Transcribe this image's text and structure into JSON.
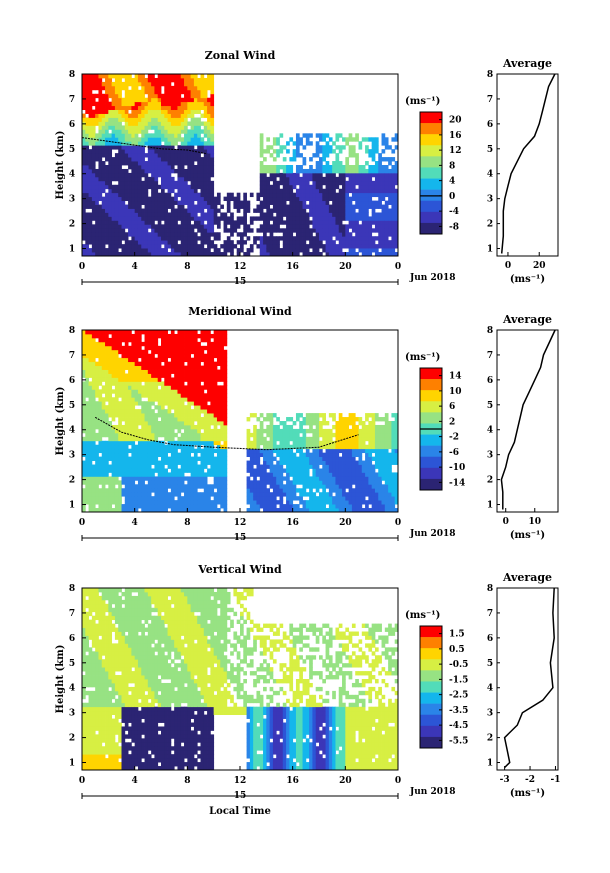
{
  "chart_data": [
    {
      "type": "heatmap",
      "title": "Zonal Wind",
      "ylabel": "Height (km)",
      "unit": "(ms⁻¹)",
      "x_ticks": [
        "0",
        "4",
        "8",
        "12",
        "16",
        "20",
        "0"
      ],
      "x_range": [
        0,
        24
      ],
      "y_ticks": [
        "1",
        "2",
        "3",
        "4",
        "5",
        "6",
        "7",
        "8"
      ],
      "y_range": [
        0.7,
        8.0
      ],
      "date_label": "15",
      "month_label": "Jun 2018",
      "colorbar_ticks": [
        "20",
        "16",
        "12",
        "8",
        "4",
        "0",
        "-4",
        "-8"
      ],
      "colorbar_range": [
        -10,
        22
      ],
      "colorbar_zero_line": 0,
      "zero_contour": [
        [
          0,
          5.45
        ],
        [
          2,
          5.3
        ],
        [
          4,
          5.15
        ],
        [
          6,
          5.0
        ],
        [
          8,
          4.95
        ],
        [
          9.5,
          4.8
        ]
      ],
      "colors": [
        "#fe0000",
        "#fe8000",
        "#ffd400",
        "#d7ef43",
        "#97e283",
        "#52dcb9",
        "#14b6ec",
        "#2a84e8",
        "#2c55d6",
        "#3b36b8",
        "#2b2473"
      ],
      "average": {
        "title": "Average",
        "xlabel": "(ms⁻¹)",
        "x_ticks": [
          "0",
          "20"
        ],
        "x_range": [
          -7,
          32
        ],
        "profile": [
          [
            0.8,
            -4
          ],
          [
            1.5,
            -3
          ],
          [
            2.5,
            -3
          ],
          [
            3.0,
            -2
          ],
          [
            3.5,
            0
          ],
          [
            4.0,
            2
          ],
          [
            4.5,
            6
          ],
          [
            5.0,
            10
          ],
          [
            5.5,
            17
          ],
          [
            6.0,
            20
          ],
          [
            6.5,
            22
          ],
          [
            7.0,
            24
          ],
          [
            7.5,
            26
          ],
          [
            8.0,
            30
          ]
        ]
      }
    },
    {
      "type": "heatmap",
      "title": "Meridional Wind",
      "ylabel": "Height (km)",
      "unit": "(ms⁻¹)",
      "x_ticks": [
        "0",
        "4",
        "8",
        "12",
        "16",
        "20",
        "0"
      ],
      "x_range": [
        0,
        24
      ],
      "y_ticks": [
        "1",
        "2",
        "3",
        "4",
        "5",
        "6",
        "7",
        "8"
      ],
      "y_range": [
        0.7,
        8.0
      ],
      "date_label": "15",
      "month_label": "Jun 2018",
      "colorbar_ticks": [
        "14",
        "10",
        "6",
        "2",
        "-2",
        "-6",
        "-10",
        "-14"
      ],
      "colorbar_range": [
        -16,
        16
      ],
      "colorbar_zero_line": 0,
      "zero_contour": [
        [
          1,
          4.5
        ],
        [
          3,
          3.9
        ],
        [
          5,
          3.6
        ],
        [
          7,
          3.4
        ],
        [
          10,
          3.3
        ],
        [
          14,
          3.2
        ],
        [
          18,
          3.3
        ],
        [
          21,
          3.8
        ]
      ],
      "colors": [
        "#fe0000",
        "#fe8000",
        "#ffd400",
        "#d7ef43",
        "#97e283",
        "#52dcb9",
        "#14b6ec",
        "#2a84e8",
        "#2c55d6",
        "#3b36b8",
        "#2b2473"
      ],
      "average": {
        "title": "Average",
        "xlabel": "(ms⁻¹)",
        "x_ticks": [
          "0",
          "10"
        ],
        "x_range": [
          -3,
          18
        ],
        "profile": [
          [
            0.8,
            -1
          ],
          [
            1.5,
            -1
          ],
          [
            2.0,
            -1.5
          ],
          [
            2.5,
            0
          ],
          [
            3.0,
            1
          ],
          [
            3.5,
            3
          ],
          [
            4.0,
            4
          ],
          [
            4.5,
            5
          ],
          [
            5.0,
            6
          ],
          [
            5.5,
            8
          ],
          [
            6.0,
            10
          ],
          [
            6.5,
            12
          ],
          [
            7.0,
            13
          ],
          [
            7.5,
            15
          ],
          [
            8.0,
            17
          ]
        ]
      }
    },
    {
      "type": "heatmap",
      "title": "Vertical Wind",
      "ylabel": "Height (km)",
      "xlabel": "Local Time",
      "unit": "(ms⁻¹)",
      "x_ticks": [
        "0",
        "4",
        "8",
        "12",
        "16",
        "20",
        "0"
      ],
      "x_range": [
        0,
        24
      ],
      "y_ticks": [
        "1",
        "2",
        "3",
        "4",
        "5",
        "6",
        "7",
        "8"
      ],
      "y_range": [
        0.7,
        8.0
      ],
      "date_label": "15",
      "month_label": "Jun 2018",
      "colorbar_ticks": [
        "1.5",
        "0.5",
        "-0.5",
        "-1.5",
        "-2.5",
        "-3.5",
        "-4.5",
        "-5.5"
      ],
      "colorbar_range": [
        -6,
        2
      ],
      "colors": [
        "#fe0000",
        "#fe8000",
        "#ffd400",
        "#d7ef43",
        "#97e283",
        "#52dcb9",
        "#14b6ec",
        "#2a84e8",
        "#2c55d6",
        "#3b36b8",
        "#2b2473"
      ],
      "average": {
        "title": "Average",
        "xlabel": "(ms⁻¹)",
        "x_ticks": [
          "-3",
          "-2",
          "-1"
        ],
        "x_range": [
          -3.3,
          -0.9
        ],
        "profile": [
          [
            0.8,
            -3.0
          ],
          [
            1.0,
            -2.8
          ],
          [
            1.5,
            -2.9
          ],
          [
            2.0,
            -3.0
          ],
          [
            2.5,
            -2.5
          ],
          [
            3.0,
            -2.3
          ],
          [
            3.5,
            -1.5
          ],
          [
            4.0,
            -1.1
          ],
          [
            5.0,
            -1.2
          ],
          [
            6.0,
            -1.05
          ],
          [
            7.0,
            -1.1
          ],
          [
            8.0,
            -1.05
          ]
        ]
      }
    }
  ]
}
